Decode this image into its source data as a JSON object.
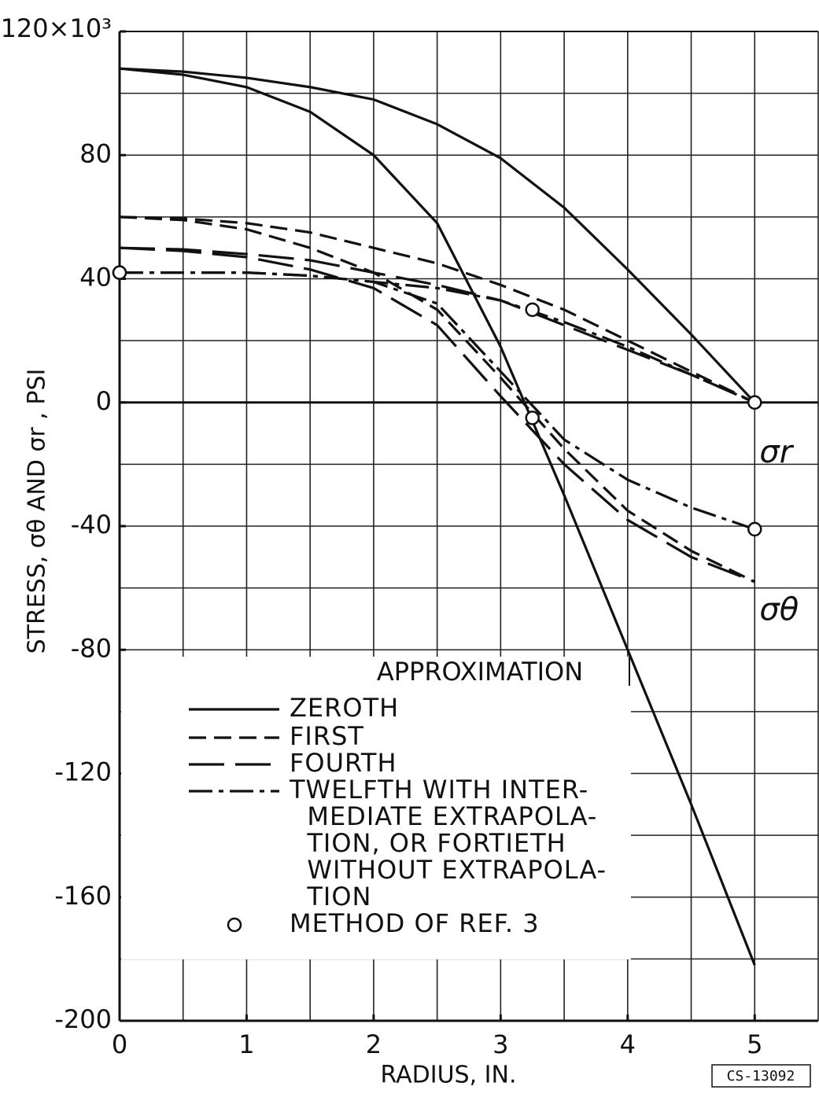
{
  "chart_data": {
    "type": "line",
    "x_label": "RADIUS, IN.",
    "y_label": "STRESS, σθ AND σr , PSI",
    "xlim": [
      0,
      5.5
    ],
    "ylim": [
      -200,
      120
    ],
    "xticks": [
      0,
      1,
      2,
      3,
      4,
      5
    ],
    "xgrid": [
      0.5,
      1,
      1.5,
      2,
      2.5,
      3,
      3.5,
      4,
      4.5,
      5,
      5.5
    ],
    "yticks": [
      {
        "value": 120,
        "label": "120×10³"
      },
      80,
      40,
      0,
      -40,
      -80,
      -120,
      -160,
      -200
    ],
    "ygrid": [
      100,
      80,
      60,
      40,
      20,
      0,
      -20,
      -40,
      -60,
      -80,
      -100,
      -120,
      -140,
      -160,
      -180
    ],
    "grid": true,
    "legend_title": "APPROXIMATION",
    "x": [
      0,
      0.5,
      1,
      1.5,
      2,
      2.5,
      3,
      3.5,
      4,
      4.5,
      5
    ],
    "series": [
      {
        "name": "ZEROTH",
        "dash": "none",
        "sigma_r": [
          108,
          107,
          105,
          102,
          98,
          90,
          79,
          63,
          43,
          22,
          0
        ],
        "sigma_theta": [
          108,
          106,
          102,
          94,
          80,
          58,
          18,
          -30,
          -80,
          -130,
          -182
        ]
      },
      {
        "name": "FIRST",
        "dash": "22,10",
        "sigma_r": [
          60,
          59.5,
          58,
          55,
          50,
          45,
          38,
          30,
          20,
          10,
          0
        ],
        "sigma_theta": [
          60,
          59,
          56,
          50,
          42,
          30,
          8,
          -15,
          -35,
          -48,
          -58
        ]
      },
      {
        "name": "FOURTH",
        "dash": "45,14",
        "sigma_r": [
          50,
          49.5,
          48,
          46,
          42,
          38,
          33,
          25,
          17,
          9,
          0
        ],
        "sigma_theta": [
          50,
          49,
          47,
          43,
          37,
          25,
          2,
          -20,
          -38,
          -50,
          -58
        ]
      },
      {
        "name": "TWELFTH WITH INTER-\n  MEDIATE EXTRAPOLA-\n  TION, OR FORTIETH\n  WITHOUT EXTRAPOLA-\n  TION",
        "dash": "30,8,6,8",
        "sigma_r": [
          42,
          42,
          42,
          41,
          39,
          37,
          33,
          26,
          18,
          9,
          0
        ],
        "sigma_theta": [
          42,
          42,
          42,
          41,
          39,
          32,
          10,
          -12,
          -25,
          -34,
          -41
        ]
      }
    ],
    "points": {
      "name": "METHOD OF REF. 3",
      "x": [
        0,
        3.25,
        5
      ],
      "sigma_r": [
        42,
        30,
        0
      ],
      "sigma_theta": [
        42,
        -5,
        -41
      ]
    },
    "annotations": [
      {
        "text": "σr",
        "x": 5.1,
        "y": -9
      },
      {
        "text": "σθ",
        "x": 5.1,
        "y": -60
      }
    ],
    "stamp": "CS-13092"
  }
}
